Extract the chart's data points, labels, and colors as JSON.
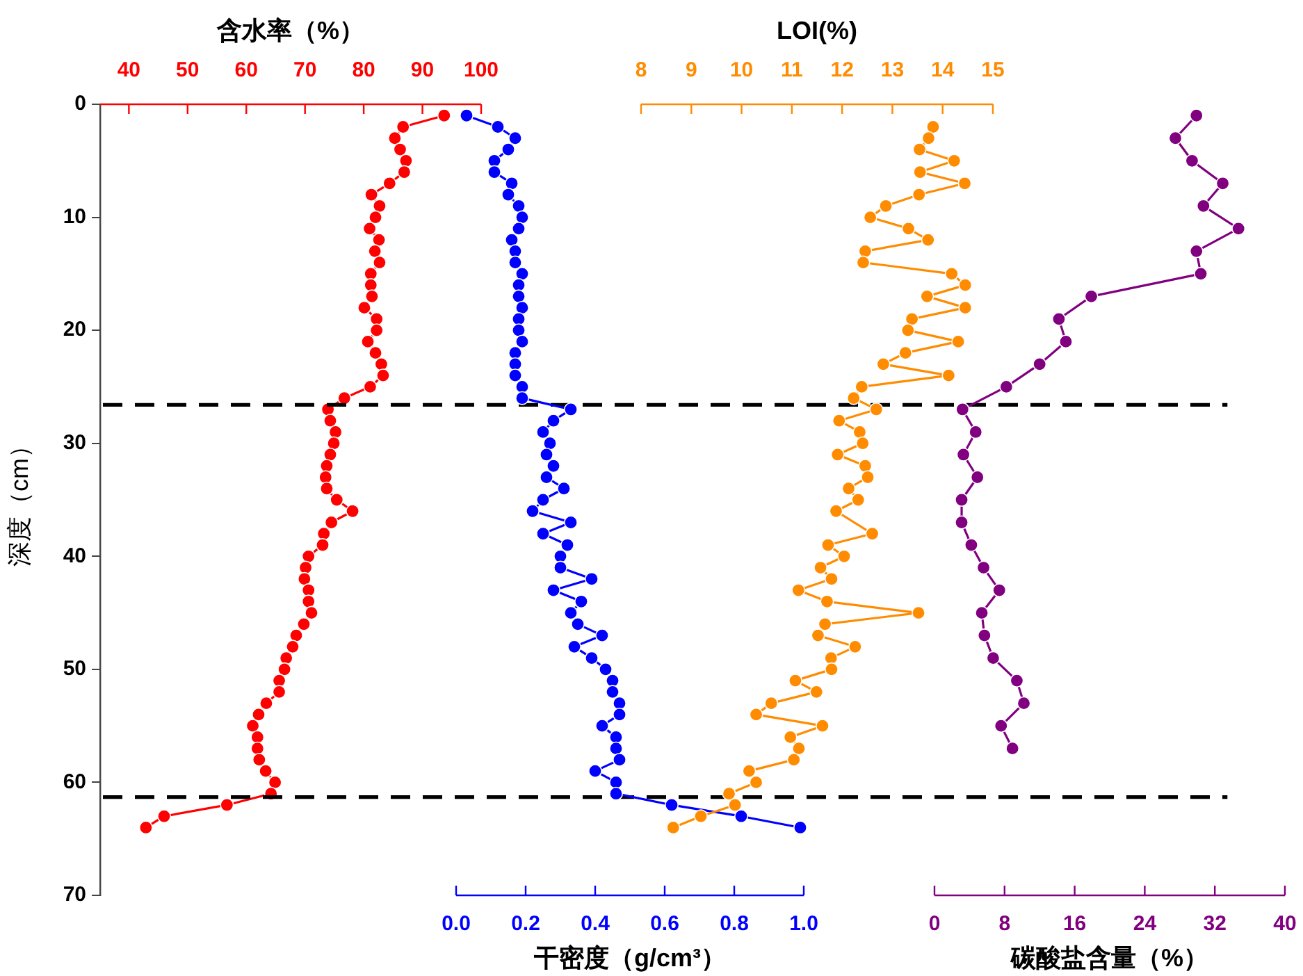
{
  "chart_data": [
    {
      "type": "line",
      "orientation": "horizontal",
      "marker": "circle",
      "line_style": "solid",
      "ylabel": "深度（cm）",
      "ylim": [
        70,
        0
      ],
      "yticks": [
        0,
        10,
        20,
        30,
        40,
        50,
        60,
        70
      ],
      "x2label": "含水率（%）",
      "x2lim": [
        35.1,
        100
      ],
      "x2ticks": [
        40,
        50,
        60,
        70,
        80,
        90,
        100
      ],
      "series": [
        {
          "axis": "x2",
          "color": "#ff0000",
          "x": [
            1,
            2,
            3,
            4,
            5,
            6,
            7,
            8,
            9,
            10,
            11,
            12,
            13,
            14,
            15,
            16,
            17,
            18,
            19,
            20,
            21,
            22,
            23,
            24,
            25,
            26,
            27,
            28,
            29,
            30,
            31,
            32,
            33,
            34,
            35,
            36,
            37,
            38,
            39,
            40,
            41,
            42,
            43,
            44,
            45,
            46,
            47,
            48,
            49,
            50,
            51,
            52,
            53,
            54,
            55,
            56,
            57,
            58,
            59,
            60,
            61,
            62,
            63,
            64
          ],
          "values": [
            93.7,
            86.7,
            85.3,
            86.2,
            87.2,
            86.9,
            84.4,
            81.3,
            82.7,
            82.0,
            81.0,
            82.6,
            81.9,
            82.7,
            81.2,
            81.2,
            81.4,
            80.1,
            82.2,
            82.2,
            80.7,
            82.0,
            83.0,
            83.3,
            81.1,
            76.7,
            73.9,
            74.3,
            75.2,
            74.9,
            74.3,
            73.7,
            73.5,
            73.7,
            75.4,
            78.1,
            74.5,
            73.2,
            73.0,
            70.6,
            70.1,
            69.9,
            70.6,
            70.6,
            71.1,
            69.8,
            68.5,
            67.9,
            66.8,
            66.5,
            65.6,
            65.6,
            63.4,
            62.1,
            61.1,
            61.9,
            61.9,
            62.2,
            63.3,
            64.9,
            64.2,
            56.7,
            46.0,
            42.9
          ]
        }
      ],
      "ref_lines": [
        {
          "axis": "y",
          "value": 26.6,
          "color": "#000000",
          "line_style": "dashed"
        },
        {
          "axis": "y",
          "value": 61.3,
          "color": "#000000",
          "line_style": "dashed"
        }
      ]
    },
    {
      "type": "line",
      "orientation": "horizontal",
      "marker": "circle",
      "line_style": "solid",
      "tick_labels": "x",
      "ylim": [
        70,
        0
      ],
      "yticks": [
        0,
        10,
        20,
        30,
        40,
        50,
        60,
        70
      ],
      "xlabel": "干密度（g/cm³）",
      "xlim": [
        0,
        1
      ],
      "xticks": [
        {
          "value": 0,
          "label": "0.0"
        },
        0.2,
        0.4,
        0.6,
        0.8,
        {
          "value": 1,
          "label": "1.0"
        }
      ],
      "series": [
        {
          "color": "#0000ff",
          "x": [
            1,
            2,
            3,
            4,
            5,
            6,
            7,
            8,
            9,
            10,
            11,
            12,
            13,
            14,
            15,
            16,
            17,
            18,
            19,
            20,
            21,
            22,
            23,
            24,
            25,
            26,
            27,
            28,
            29,
            30,
            31,
            32,
            33,
            34,
            35,
            36,
            37,
            38,
            39,
            40,
            41,
            42,
            43,
            44,
            45,
            46,
            47,
            48,
            49,
            50,
            51,
            52,
            53,
            54,
            55,
            56,
            57,
            58,
            59,
            60,
            61,
            62,
            63,
            64
          ],
          "values": [
            0.03,
            0.12,
            0.17,
            0.15,
            0.11,
            0.11,
            0.16,
            0.15,
            0.18,
            0.19,
            0.18,
            0.16,
            0.17,
            0.17,
            0.19,
            0.18,
            0.18,
            0.19,
            0.18,
            0.18,
            0.19,
            0.17,
            0.17,
            0.17,
            0.19,
            0.19,
            0.33,
            0.28,
            0.25,
            0.27,
            0.26,
            0.28,
            0.26,
            0.31,
            0.25,
            0.22,
            0.33,
            0.25,
            0.32,
            0.3,
            0.3,
            0.39,
            0.28,
            0.36,
            0.33,
            0.35,
            0.42,
            0.34,
            0.39,
            0.43,
            0.45,
            0.45,
            0.47,
            0.47,
            0.42,
            0.46,
            0.46,
            0.47,
            0.4,
            0.46,
            0.46,
            0.62,
            0.82,
            0.99
          ]
        }
      ]
    },
    {
      "type": "line",
      "orientation": "horizontal",
      "marker": "circle",
      "line_style": "solid",
      "tick_labels": "x",
      "ylim": [
        70,
        0
      ],
      "yticks": [
        0,
        10,
        20,
        30,
        40,
        50,
        60,
        70
      ],
      "x2label": "LOI(%)",
      "x2lim": [
        8,
        15
      ],
      "x2ticks": [
        8,
        9,
        10,
        11,
        12,
        13,
        14,
        15
      ],
      "series": [
        {
          "axis": "x2",
          "color": "#ff8c00",
          "x": [
            2,
            3,
            4,
            5,
            6,
            7,
            8,
            9,
            10,
            11,
            12,
            13,
            14,
            15,
            16,
            17,
            18,
            19,
            20,
            21,
            22,
            23,
            24,
            25,
            26,
            27,
            28,
            29,
            30,
            31,
            32,
            33,
            34,
            35,
            36,
            38,
            39,
            40,
            41,
            42,
            43,
            44,
            45,
            46,
            47,
            48,
            49,
            50,
            51,
            52,
            53,
            54,
            55,
            56,
            57,
            58,
            59,
            60,
            61,
            62,
            63,
            64
          ],
          "values": [
            13.81,
            13.72,
            13.54,
            14.23,
            13.55,
            14.44,
            13.53,
            12.87,
            12.56,
            13.32,
            13.71,
            12.46,
            12.42,
            14.18,
            14.45,
            13.69,
            14.45,
            13.39,
            13.31,
            14.31,
            13.26,
            12.82,
            14.12,
            12.39,
            12.23,
            12.68,
            11.94,
            12.35,
            12.41,
            11.91,
            12.46,
            12.51,
            12.13,
            12.32,
            11.88,
            12.6,
            11.72,
            12.04,
            11.57,
            11.79,
            11.13,
            11.7,
            13.52,
            11.66,
            11.52,
            12.26,
            11.78,
            11.79,
            11.07,
            11.49,
            10.59,
            10.29,
            11.61,
            10.97,
            11.14,
            11.04,
            10.15,
            10.29,
            9.75,
            9.87,
            9.19,
            8.64
          ]
        }
      ]
    },
    {
      "type": "line",
      "orientation": "horizontal",
      "marker": "circle",
      "line_style": "solid",
      "tick_labels": "x",
      "ylim": [
        70,
        0
      ],
      "yticks": [
        0,
        10,
        20,
        30,
        40,
        50,
        60,
        70
      ],
      "xlabel": "碳酸盐含量（%）",
      "xlim": [
        0,
        40
      ],
      "xticks": [
        0,
        8,
        16,
        24,
        32,
        40
      ],
      "series": [
        {
          "color": "#800080",
          "x": [
            1,
            3,
            5,
            7,
            9,
            11,
            13,
            15,
            17,
            19,
            21,
            23,
            25,
            27,
            29,
            31,
            33,
            35,
            37,
            39,
            41,
            43,
            45,
            47,
            49,
            51,
            53,
            55,
            57
          ],
          "values": [
            29.9,
            27.5,
            29.4,
            32.9,
            30.7,
            34.7,
            29.9,
            30.4,
            17.9,
            14.2,
            15.0,
            12.0,
            8.2,
            3.2,
            4.7,
            3.3,
            4.9,
            3.1,
            3.1,
            4.2,
            5.6,
            7.4,
            5.4,
            5.7,
            6.7,
            9.4,
            10.2,
            7.6,
            8.9
          ]
        }
      ]
    }
  ]
}
